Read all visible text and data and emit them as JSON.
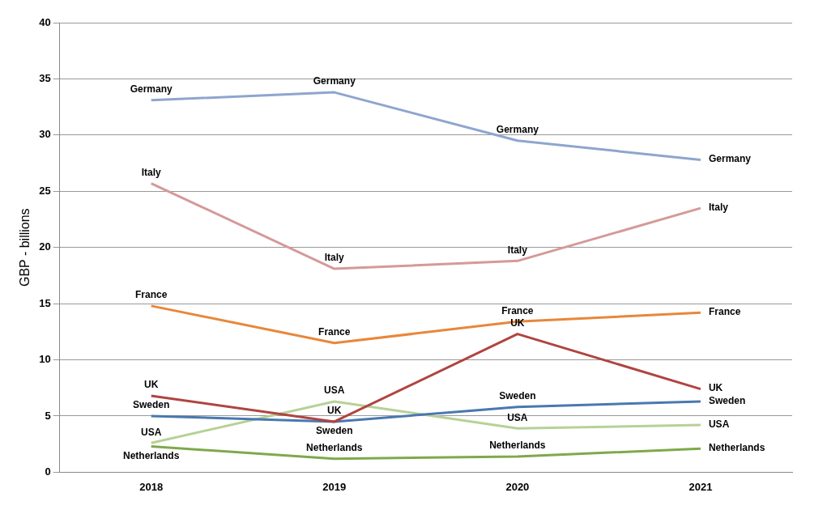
{
  "chart_data": {
    "type": "line",
    "ylabel": "GBP - billions",
    "categories": [
      "2018",
      "2019",
      "2020",
      "2021"
    ],
    "ylim": [
      0,
      40
    ],
    "yticks": [
      0,
      5,
      10,
      15,
      20,
      25,
      30,
      35,
      40
    ],
    "grid": "y",
    "legend": false,
    "marker": "none",
    "series": [
      {
        "name": "Germany",
        "color": "#8ea5cf",
        "values": [
          33.1,
          33.8,
          29.5,
          27.8
        ]
      },
      {
        "name": "Italy",
        "color": "#d49a98",
        "values": [
          25.7,
          18.1,
          18.8,
          23.5
        ]
      },
      {
        "name": "France",
        "color": "#e8873a",
        "values": [
          14.8,
          11.5,
          13.4,
          14.2
        ]
      },
      {
        "name": "UK",
        "color": "#b04440",
        "values": [
          6.8,
          4.5,
          12.3,
          7.4
        ]
      },
      {
        "name": "Sweden",
        "color": "#4a78b0",
        "values": [
          5.0,
          4.5,
          5.8,
          6.3
        ]
      },
      {
        "name": "USA",
        "color": "#b7d196",
        "values": [
          2.6,
          6.3,
          3.9,
          4.2
        ]
      },
      {
        "name": "Netherlands",
        "color": "#7ea94a",
        "values": [
          2.3,
          1.2,
          1.4,
          2.1
        ]
      }
    ]
  }
}
